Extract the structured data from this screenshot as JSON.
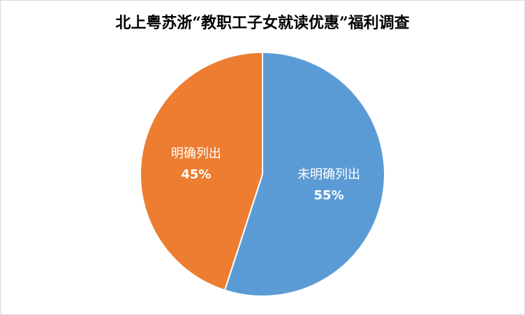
{
  "chart_data": {
    "type": "pie",
    "title": "北上粤苏浙“教职工子女就读优惠”福利调查",
    "categories": [
      "未明确列出",
      "明确列出"
    ],
    "values": [
      55,
      45
    ],
    "value_labels": [
      "55%",
      "45%"
    ],
    "colors": [
      "#5b9bd5",
      "#ed7d31"
    ]
  }
}
